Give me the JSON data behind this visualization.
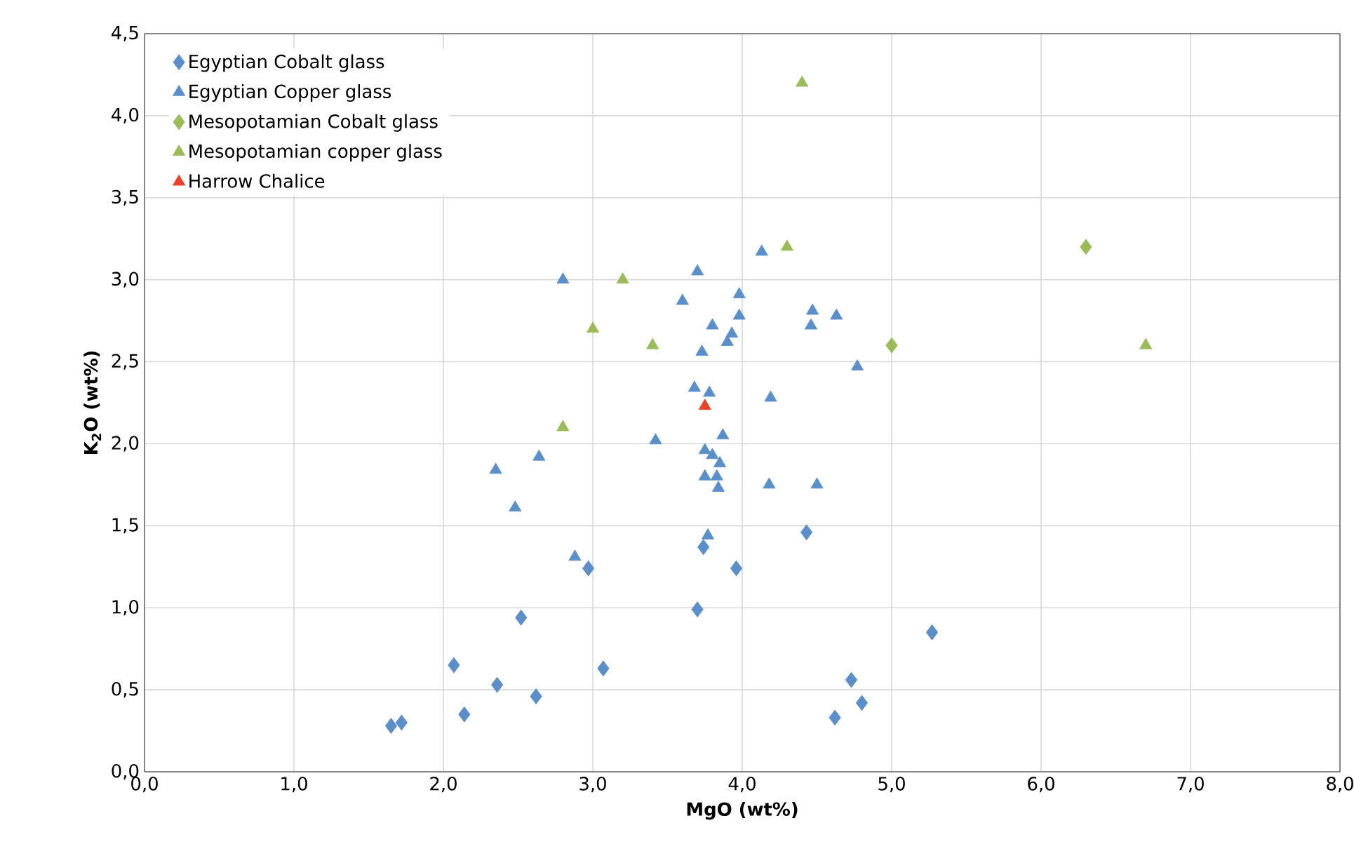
{
  "chart_data": {
    "type": "scatter",
    "xlabel": "MgO (wt%)",
    "ylabel": "K$_{2}$O (wt%)",
    "xlim": [
      0,
      8
    ],
    "ylim": [
      0,
      4.5
    ],
    "xticks": [
      {
        "value": 0,
        "label": "0,0"
      },
      {
        "value": 1,
        "label": "1,0"
      },
      {
        "value": 2,
        "label": "2,0"
      },
      {
        "value": 3,
        "label": "3,0"
      },
      {
        "value": 4,
        "label": "4,0"
      },
      {
        "value": 5,
        "label": "5,0"
      },
      {
        "value": 6,
        "label": "6,0"
      },
      {
        "value": 7,
        "label": "7,0"
      },
      {
        "value": 8,
        "label": "8,0"
      }
    ],
    "yticks": [
      {
        "value": 0,
        "label": "0,0"
      },
      {
        "value": 0.5,
        "label": "0,5"
      },
      {
        "value": 1,
        "label": "1,0"
      },
      {
        "value": 1.5,
        "label": "1,5"
      },
      {
        "value": 2,
        "label": "2,0"
      },
      {
        "value": 2.5,
        "label": "2,5"
      },
      {
        "value": 3,
        "label": "3,0"
      },
      {
        "value": 3.5,
        "label": "3,5"
      },
      {
        "value": 4,
        "label": "4,0"
      },
      {
        "value": 4.5,
        "label": "4,5"
      }
    ],
    "grid": true,
    "legend": "top left",
    "series": [
      {
        "name": "Egyptian Cobalt glass",
        "color": "#5b8fc9",
        "marker": "diamond",
        "x": [
          1.65,
          1.72,
          2.07,
          2.14,
          2.36,
          2.52,
          2.62,
          2.97,
          3.07,
          3.7,
          3.74,
          3.96,
          4.43,
          4.62,
          4.73,
          4.8,
          5.27
        ],
        "values": [
          0.28,
          0.3,
          0.65,
          0.35,
          0.53,
          0.94,
          0.46,
          1.24,
          0.63,
          0.99,
          1.37,
          1.24,
          1.46,
          0.33,
          0.56,
          0.42,
          0.85
        ]
      },
      {
        "name": "Egyptian Copper glass",
        "color": "#5b8fc9",
        "marker": "triangle",
        "x": [
          2.8,
          3.7,
          3.6,
          3.98,
          4.13,
          3.98,
          3.8,
          3.93,
          3.9,
          3.73,
          4.47,
          4.63,
          4.46,
          4.77,
          3.68,
          3.78,
          4.19,
          3.87,
          3.42,
          3.75,
          3.8,
          3.85,
          3.75,
          3.83,
          3.84,
          2.35,
          2.64,
          2.48,
          4.18,
          4.5,
          3.77,
          2.88
        ],
        "values": [
          3.0,
          3.05,
          2.87,
          2.91,
          3.17,
          2.78,
          2.72,
          2.67,
          2.62,
          2.56,
          2.81,
          2.78,
          2.72,
          2.47,
          2.34,
          2.31,
          2.28,
          2.05,
          2.02,
          1.96,
          1.93,
          1.88,
          1.8,
          1.8,
          1.73,
          1.84,
          1.92,
          1.61,
          1.75,
          1.75,
          1.44,
          1.31
        ]
      },
      {
        "name": "Mesopotamian Cobalt glass",
        "color": "#9bbb59",
        "marker": "diamond",
        "x": [
          6.3,
          5.0
        ],
        "values": [
          3.2,
          2.6
        ]
      },
      {
        "name": "Mesopotamian copper glass",
        "color": "#9bbb59",
        "marker": "triangle",
        "x": [
          4.4,
          4.3,
          3.2,
          3.0,
          3.4,
          2.8,
          6.7
        ],
        "values": [
          4.2,
          3.2,
          3.0,
          2.7,
          2.6,
          2.1,
          2.6
        ]
      },
      {
        "name": "Harrow Chalice",
        "color": "#e8432a",
        "marker": "triangle",
        "x": [
          3.75
        ],
        "values": [
          2.23
        ]
      }
    ]
  }
}
